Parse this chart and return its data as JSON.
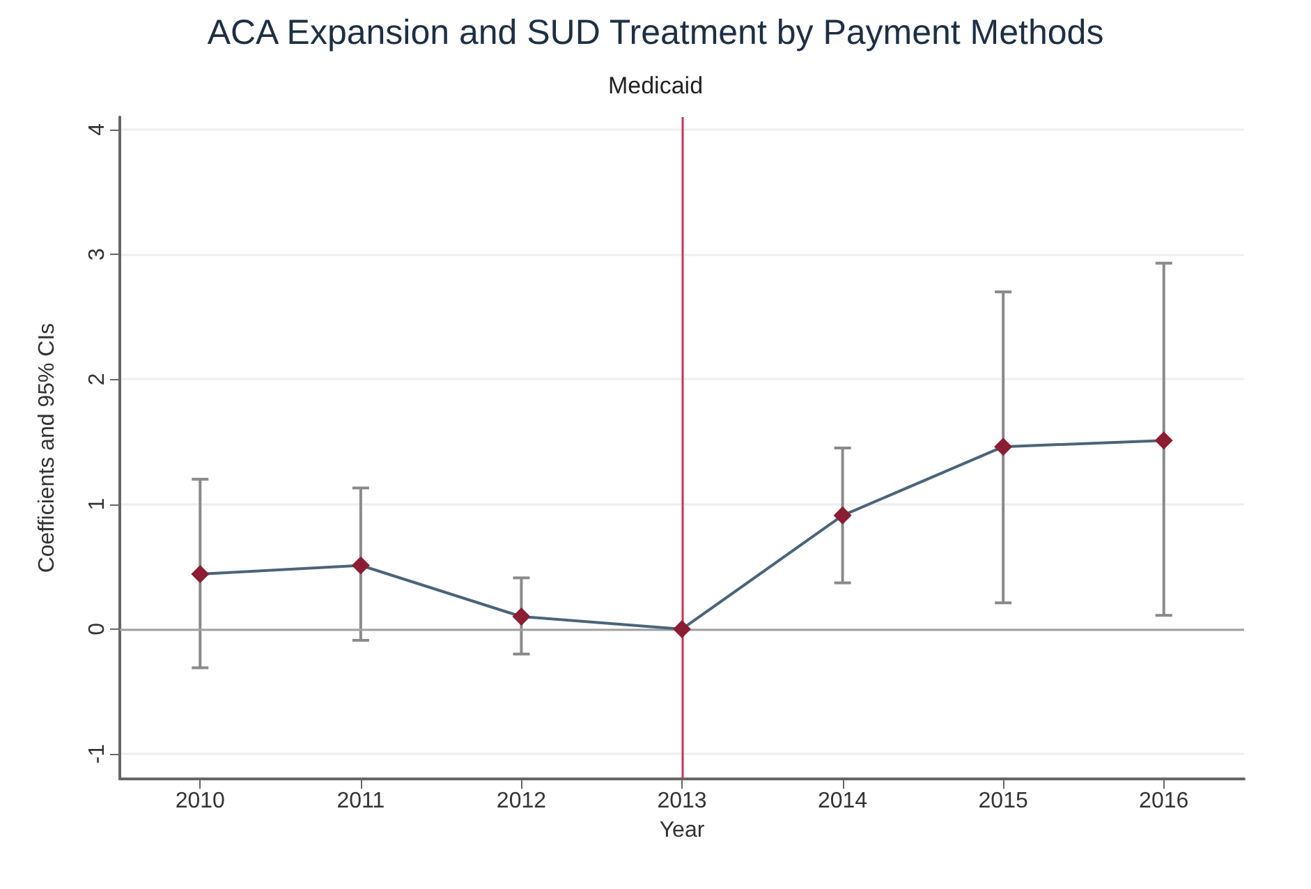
{
  "chart_data": {
    "type": "line",
    "title": "ACA Expansion and SUD Treatment by Payment Methods",
    "subtitle": "Medicaid",
    "xlabel": "Year",
    "ylabel": "Coefficients and 95% CIs",
    "x": [
      2010,
      2011,
      2012,
      2013,
      2014,
      2015,
      2016
    ],
    "series": [
      {
        "color": "#4a6478",
        "colors": [
          "#8b1e32",
          "#8b1e32",
          "#8b1e32",
          "#8b1e32",
          "#8b1e32",
          "#8b1e32",
          "#8b1e32"
        ],
        "values": [
          0.44,
          0.51,
          0.1,
          0,
          0.91,
          1.46,
          1.51
        ],
        "errors": [
          [
            -0.31,
            1.2
          ],
          [
            -0.09,
            1.13
          ],
          [
            -0.2,
            0.41
          ],
          null,
          [
            0.37,
            1.45
          ],
          [
            0.21,
            2.7
          ],
          [
            0.11,
            2.93
          ]
        ]
      }
    ],
    "xlim": [
      2009.5,
      2016.5
    ],
    "xticks": [
      2010,
      2011,
      2012,
      2013,
      2014,
      2015,
      2016
    ],
    "ylim": [
      -1.2,
      4.1
    ],
    "yticks": [
      -1,
      0,
      1,
      2,
      3,
      4
    ],
    "ref_lines": [
      {
        "axis": "x",
        "value": 2013,
        "color": "#c8325a"
      },
      {
        "axis": "y",
        "value": 0,
        "color": "#a0a0a0"
      }
    ],
    "grid": "y",
    "marker": "diamond",
    "line_style": "solid"
  }
}
